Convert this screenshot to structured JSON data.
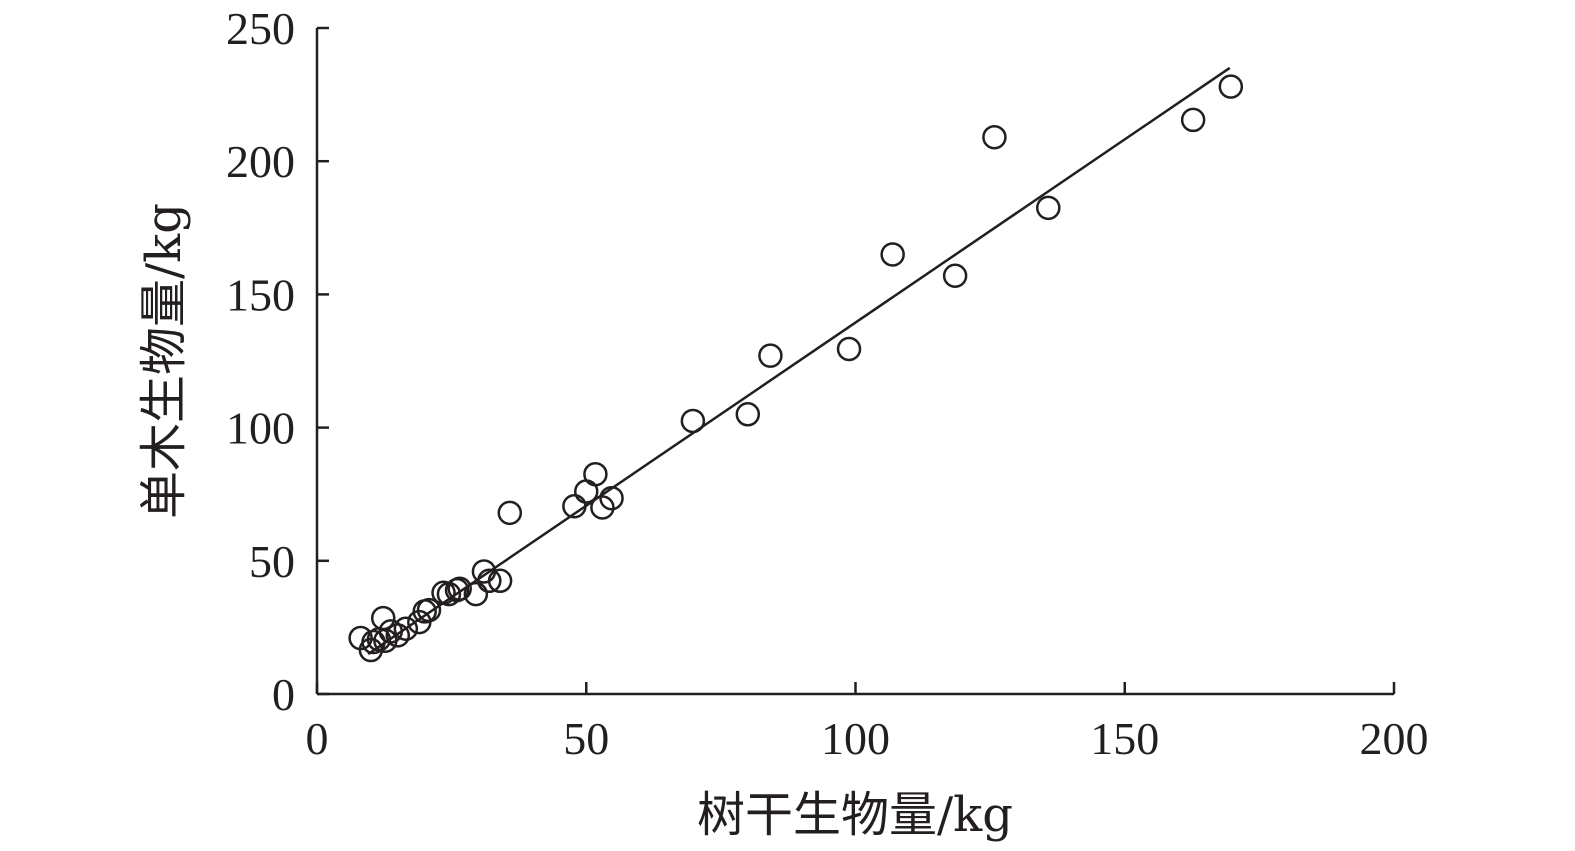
{
  "chart_data": {
    "type": "scatter",
    "title": "",
    "xlabel": "树干生物量/kg",
    "ylabel": "单木生物量/kg",
    "xlim": [
      0,
      200
    ],
    "ylim": [
      0,
      250
    ],
    "xticks": [
      0,
      50,
      100,
      150,
      200
    ],
    "yticks": [
      0,
      50,
      100,
      150,
      200,
      250
    ],
    "grid": false,
    "legend": "none",
    "colors": {
      "ink": "#231f20",
      "background": "#ffffff"
    },
    "series": [
      {
        "marker": "open-circle",
        "points": [
          [
            8.1,
            21
          ],
          [
            10.0,
            16.5
          ],
          [
            10.5,
            19.5
          ],
          [
            11.5,
            20.5
          ],
          [
            12.3,
            28.5
          ],
          [
            12.7,
            20.0
          ],
          [
            13.7,
            23.5
          ],
          [
            15.0,
            22.0
          ],
          [
            16.5,
            24.5
          ],
          [
            19.0,
            27.0
          ],
          [
            20.0,
            31.0
          ],
          [
            20.8,
            31.5
          ],
          [
            23.5,
            38.0
          ],
          [
            24.5,
            37.5
          ],
          [
            26.0,
            39.0
          ],
          [
            26.5,
            39.5
          ],
          [
            29.5,
            37.5
          ],
          [
            31.0,
            46.0
          ],
          [
            32.0,
            42.5
          ],
          [
            34.0,
            42.5
          ],
          [
            35.8,
            68.0
          ],
          [
            47.8,
            70.5
          ],
          [
            50.0,
            76.0
          ],
          [
            51.7,
            82.5
          ],
          [
            53.0,
            70.0
          ],
          [
            54.7,
            73.5
          ],
          [
            69.8,
            102.5
          ],
          [
            80.0,
            105.0
          ],
          [
            84.2,
            127.0
          ],
          [
            98.8,
            129.5
          ],
          [
            106.9,
            165.0
          ],
          [
            118.5,
            157.0
          ],
          [
            125.8,
            209.0
          ],
          [
            135.8,
            182.5
          ],
          [
            162.7,
            215.5
          ],
          [
            169.7,
            228.0
          ]
        ]
      }
    ],
    "fit_line": {
      "x": [
        9.5,
        169.5
      ],
      "y": [
        15.0,
        235.0
      ]
    }
  }
}
